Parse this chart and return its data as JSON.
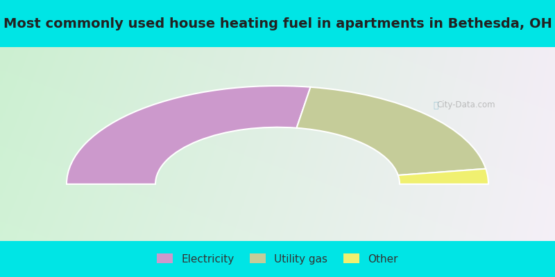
{
  "title": "Most commonly used house heating fuel in apartments in Bethesda, OH",
  "slices": [
    {
      "label": "Electricity",
      "value": 55,
      "color": "#cc99cc"
    },
    {
      "label": "Utility gas",
      "value": 40,
      "color": "#c5cc99"
    },
    {
      "label": "Other",
      "value": 5,
      "color": "#f0f070"
    }
  ],
  "bg_color_outer": "#00e5e5",
  "bg_color_chart": "#d8edd8",
  "title_fontsize": 14,
  "legend_fontsize": 11,
  "watermark_text": "City-Data.com"
}
